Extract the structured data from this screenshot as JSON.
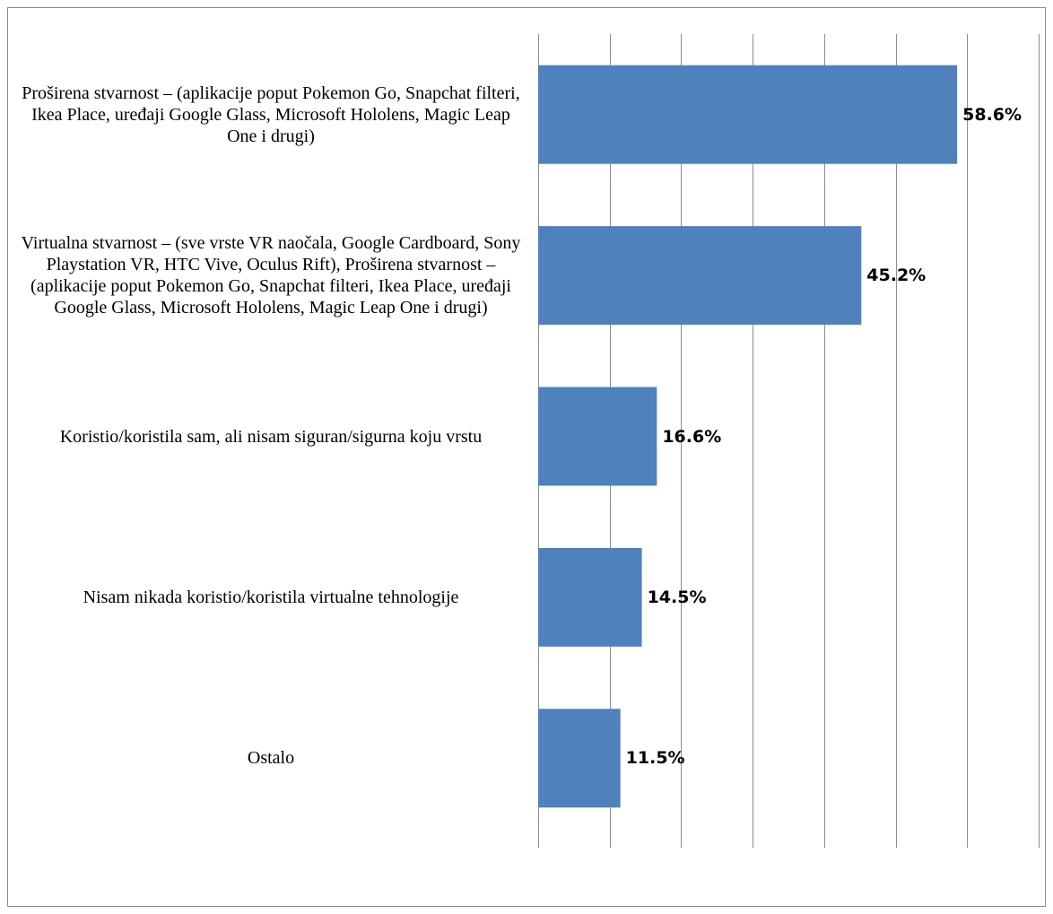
{
  "chart_data": {
    "type": "bar",
    "orientation": "horizontal",
    "categories": [
      "Proširena stvarnost – (aplikacije poput Pokemon Go, Snapchat filteri, Ikea Place, uređaji Google Glass, Microsoft Hololens, Magic Leap One i drugi)",
      "Virtualna stvarnost – (sve vrste VR naočala, Google Cardboard, Sony Playstation VR, HTC Vive, Oculus Rift), Proširena stvarnost – (aplikacije poput Pokemon Go, Snapchat filteri, Ikea Place, uređaji Google Glass, Microsoft Hololens, Magic Leap One i drugi)",
      "Koristio/koristila sam, ali nisam siguran/sigurna koju vrstu",
      "Nisam nikada koristio/koristila virtualne tehnologije",
      "Ostalo"
    ],
    "values": [
      58.6,
      45.2,
      16.6,
      14.5,
      11.5
    ],
    "value_labels": [
      "58.6%",
      "45.2%",
      "16.6%",
      "14.5%",
      "11.5%"
    ],
    "xlim": [
      0,
      70
    ],
    "x_gridline_step": 10,
    "grid": true,
    "bar_color": "#4f81bd",
    "grid_color": "#8c8c8c",
    "title": "",
    "xlabel": "",
    "ylabel": ""
  }
}
